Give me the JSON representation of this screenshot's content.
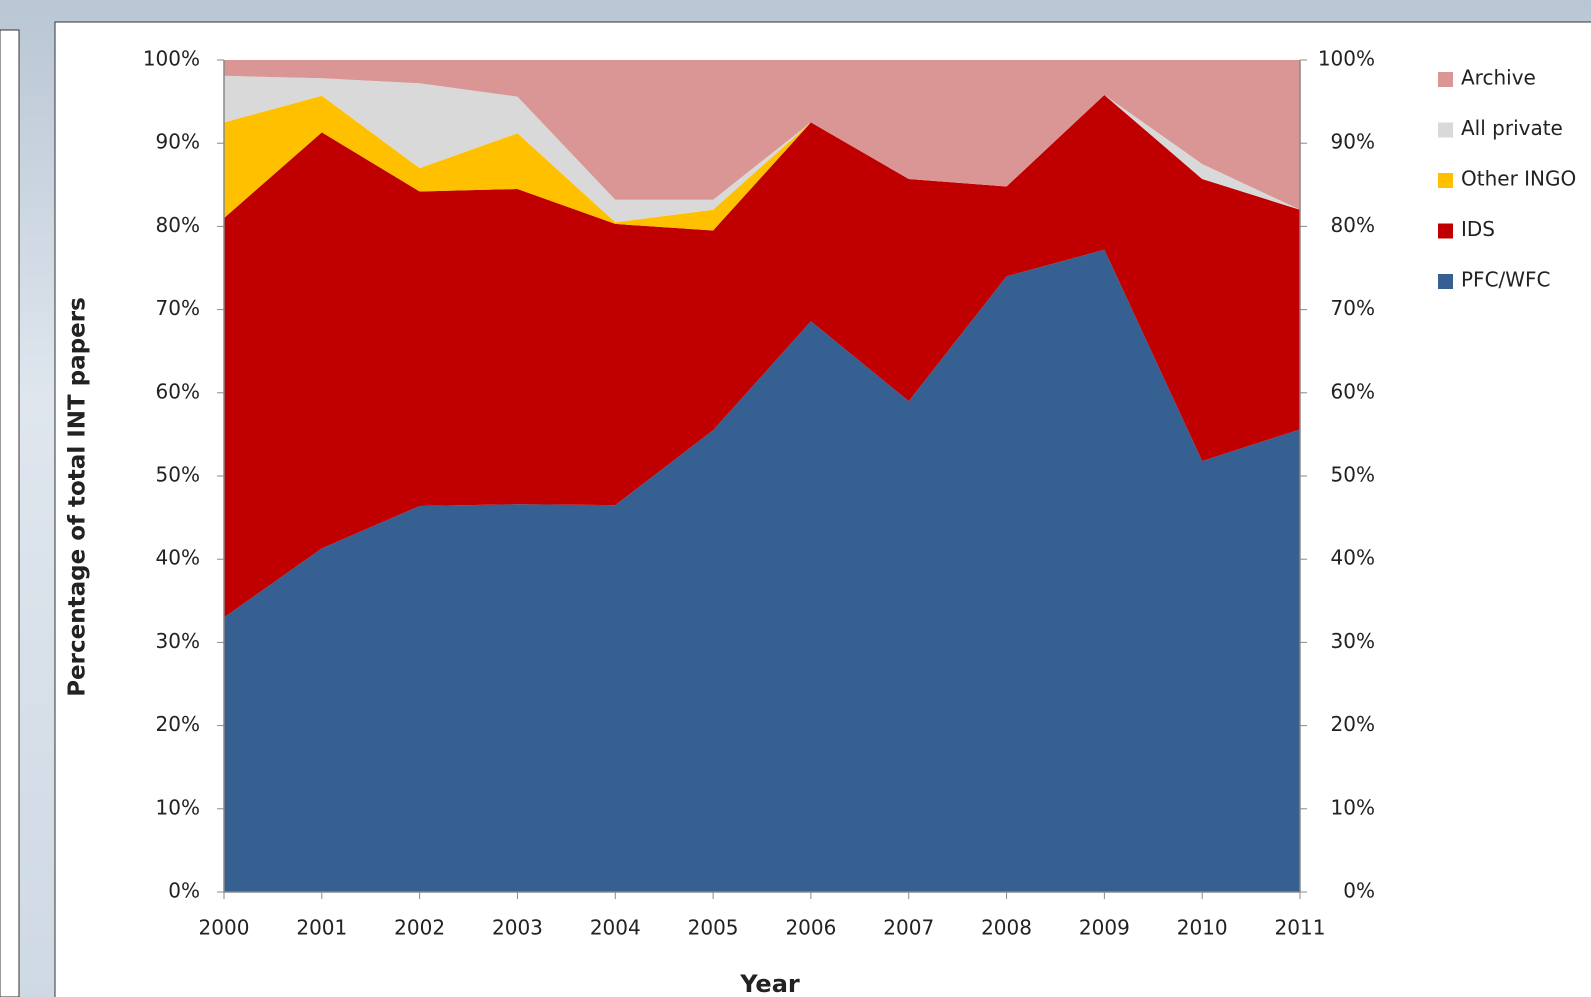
{
  "chart_data": {
    "type": "stacked-area",
    "y_label": "Percentage of total INT papers",
    "x_label": "Year",
    "x": [
      2000,
      2001,
      2002,
      2003,
      2004,
      2005,
      2006,
      2007,
      2008,
      2009,
      2010,
      2011
    ],
    "xlim": [
      2000,
      2011
    ],
    "xticks": [
      2000,
      2001,
      2002,
      2003,
      2004,
      2005,
      2006,
      2007,
      2008,
      2009,
      2010,
      2011
    ],
    "ylim": [
      0,
      100
    ],
    "yticks": [
      {
        "value": 0,
        "label": "0%"
      },
      {
        "value": 10,
        "label": "10%"
      },
      {
        "value": 20,
        "label": "20%"
      },
      {
        "value": 30,
        "label": "30%"
      },
      {
        "value": 40,
        "label": "40%"
      },
      {
        "value": 50,
        "label": "50%"
      },
      {
        "value": 60,
        "label": "60%"
      },
      {
        "value": 70,
        "label": "70%"
      },
      {
        "value": 80,
        "label": "80%"
      },
      {
        "value": 90,
        "label": "90%"
      },
      {
        "value": 100,
        "label": "100%"
      }
    ],
    "y2lim": [
      0,
      100
    ],
    "y2ticks": [
      {
        "value": 0,
        "label": "0%"
      },
      {
        "value": 10,
        "label": "10%"
      },
      {
        "value": 20,
        "label": "20%"
      },
      {
        "value": 30,
        "label": "30%"
      },
      {
        "value": 40,
        "label": "40%"
      },
      {
        "value": 50,
        "label": "50%"
      },
      {
        "value": 60,
        "label": "60%"
      },
      {
        "value": 70,
        "label": "70%"
      },
      {
        "value": 80,
        "label": "80%"
      },
      {
        "value": 90,
        "label": "90%"
      },
      {
        "value": 100,
        "label": "100%"
      }
    ],
    "legend": "right",
    "series": [
      {
        "name": "PFC/WFC",
        "color": "#376092",
        "values": [
          33,
          41.3,
          46.4,
          46.6,
          46.5,
          55.5,
          68.6,
          59,
          74,
          77.2,
          51.8,
          55.6
        ]
      },
      {
        "name": "IDS",
        "color": "#c00000",
        "values": [
          48,
          50,
          37.8,
          37.9,
          33.8,
          24,
          23.9,
          26.7,
          10.8,
          18.6,
          33.9,
          26.4
        ]
      },
      {
        "name": "Other INGO",
        "color": "#ffc000",
        "values": [
          11.5,
          4.4,
          2.8,
          6.7,
          0.2,
          2.5,
          0,
          0,
          0,
          0,
          0,
          0
        ]
      },
      {
        "name": "All private",
        "color": "#d9d9d9",
        "values": [
          5.6,
          2.1,
          10.2,
          4.4,
          2.7,
          1.2,
          0,
          0,
          0,
          0,
          1.8,
          0
        ]
      },
      {
        "name": "Archive",
        "color": "#d99694",
        "values": [
          1.9,
          2.2,
          2.8,
          4.4,
          16.8,
          16.8,
          7.5,
          14.3,
          15.2,
          4.2,
          12.5,
          18
        ]
      }
    ]
  }
}
